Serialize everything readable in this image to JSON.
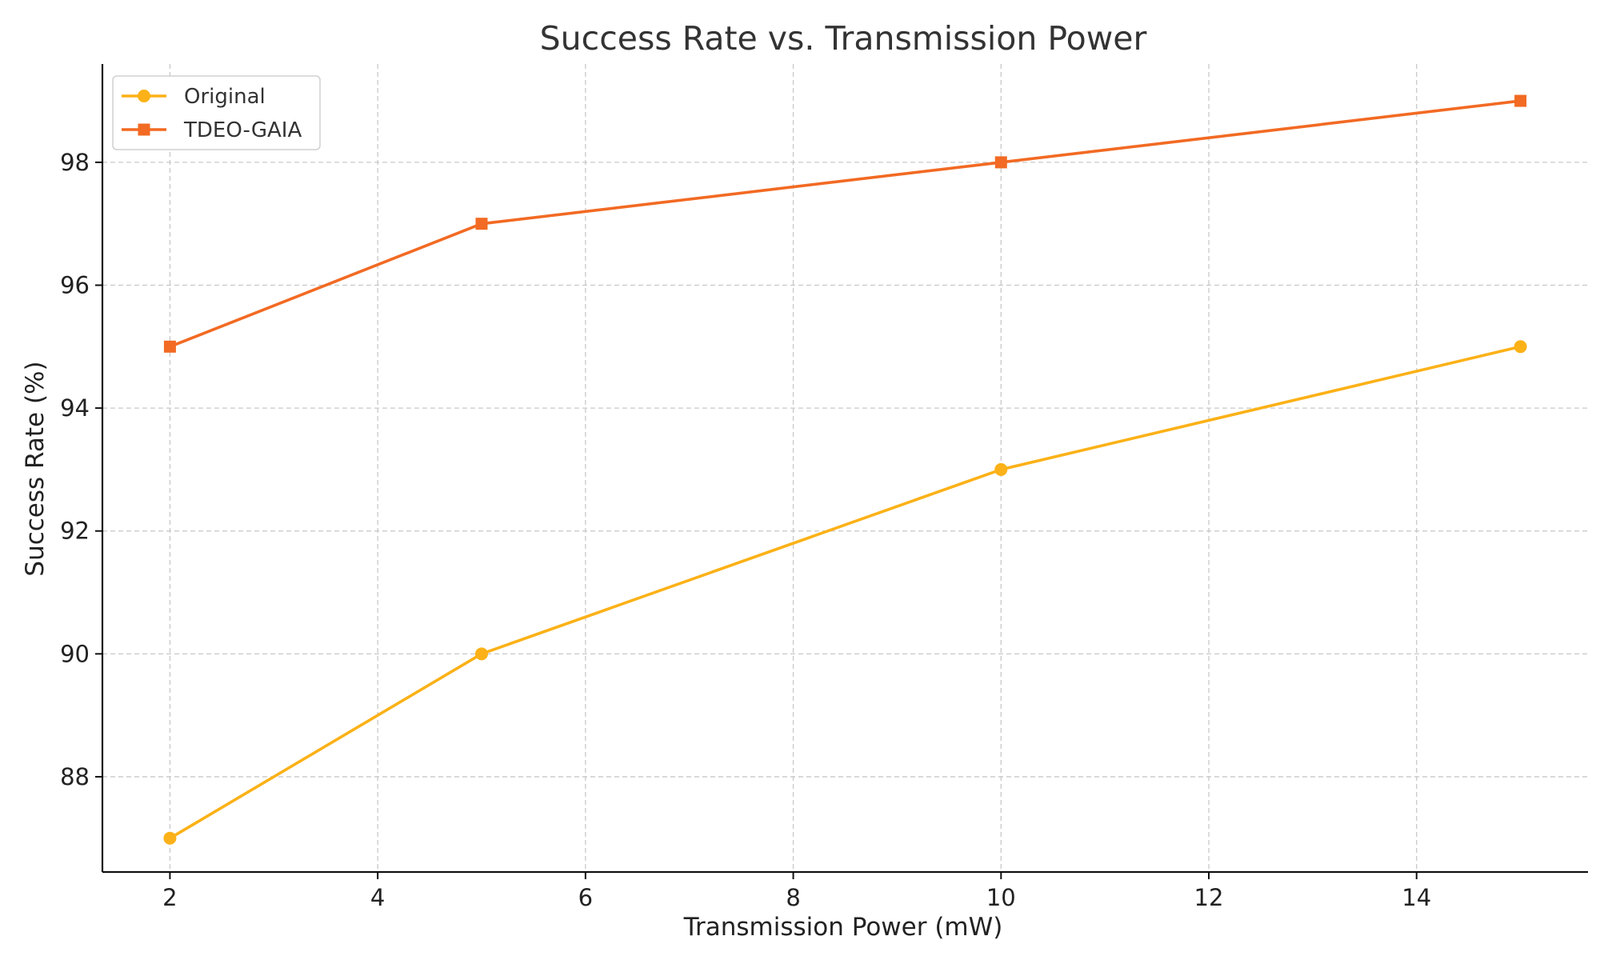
{
  "chart_data": {
    "type": "line",
    "title": "Success Rate vs. Transmission Power",
    "xlabel": "Transmission Power (mW)",
    "ylabel": "Success Rate (%)",
    "x": [
      2,
      5,
      10,
      15
    ],
    "series": [
      {
        "name": "Original",
        "values": [
          87,
          90,
          93,
          95
        ],
        "color": "#FBB117",
        "marker": "circle"
      },
      {
        "name": "TDEO-GAIA",
        "values": [
          95,
          97,
          98,
          99
        ],
        "color": "#F26A23",
        "marker": "square"
      }
    ],
    "xlim": [
      1.35,
      15.65
    ],
    "ylim": [
      86.45,
      99.6
    ],
    "xticks": [
      2,
      4,
      6,
      8,
      10,
      12,
      14
    ],
    "yticks": [
      88,
      90,
      92,
      94,
      96,
      98
    ],
    "grid": true,
    "legend": "top-left"
  }
}
